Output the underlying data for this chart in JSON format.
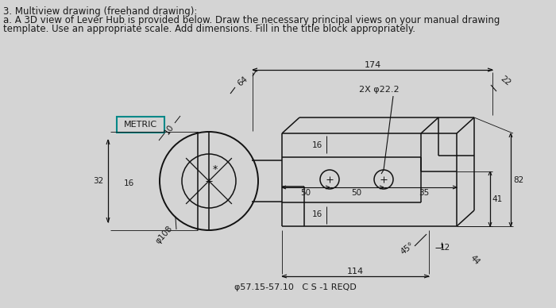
{
  "bg_color": "#d4d4d4",
  "text_color": "#1a1a1a",
  "title_line1": "3. Multiview drawing (freehand drawing):",
  "title_line2": "a. A 3D view of Lever Hub is provided below. Draw the necessary principal views on your manual drawing",
  "title_line3": "template. Use an appropriate scale. Add dimensions. Fill in the title block appropriately.",
  "metric_label": "METRIC",
  "dim_174": "174",
  "dim_64": "64",
  "dim_22": "22",
  "dim_2x_phi": "2X φ22.2",
  "dim_10": "10",
  "dim_16a": "16",
  "dim_16b": "16",
  "dim_16c": "16",
  "dim_32": "32",
  "dim_phi108": "φ108",
  "dim_50a": "50",
  "dim_50b": "50",
  "dim_35": "35",
  "dim_41": "41",
  "dim_82": "82",
  "dim_45deg": "45°",
  "dim_12": "12",
  "dim_44": "44",
  "dim_114": "114",
  "dim_phi_bottom": "φ57.15-57.10",
  "dim_cs": "C S -1 REQD",
  "line_color": "#111111",
  "metric_border_color": "#008888"
}
